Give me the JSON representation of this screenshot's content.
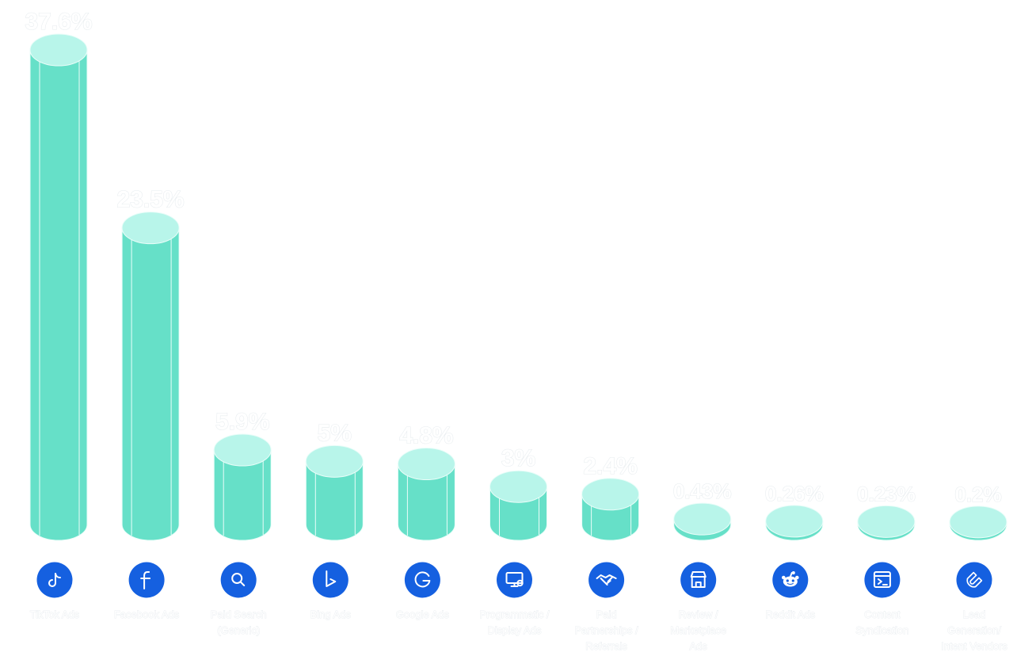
{
  "colors": {
    "bar_body": "#66e0c8",
    "bar_top": "#b8f5ea",
    "bar_edge": "#eafdf9",
    "icon_bg": "#1560e0"
  },
  "chart_data": {
    "type": "bar",
    "title": "",
    "xlabel": "",
    "ylabel": "",
    "ylim": [
      0,
      37.6
    ],
    "grid": false,
    "categories": [
      [
        "TikTok Ads"
      ],
      [
        "Facebook Ads"
      ],
      [
        "Paid Search",
        "(Generic)"
      ],
      [
        "Bing Ads"
      ],
      [
        "Google Ads"
      ],
      [
        "Programmatic /",
        "Display Ads"
      ],
      [
        "Paid",
        "Partnerships /",
        "Referrals"
      ],
      [
        "Review /",
        "Marketplace",
        "Ads"
      ],
      [
        "Reddit Ads"
      ],
      [
        "Content",
        "Syndication"
      ],
      [
        "Lead",
        "Generation/",
        "Intent Vendors"
      ]
    ],
    "values": [
      37.6,
      23.5,
      5.9,
      5,
      4.8,
      3,
      2.4,
      0.43,
      0.26,
      0.23,
      0.2
    ],
    "value_labels": [
      "37.6%",
      "23.5%",
      "5.9%",
      "5%",
      "4.8%",
      "3%",
      "2.4%",
      "0.43%",
      "0.26%",
      "0.23%",
      "0.2%"
    ],
    "icons": [
      "tiktok-icon",
      "facebook-icon",
      "search-icon",
      "bing-icon",
      "google-icon",
      "monitor-icon",
      "handshake-icon",
      "storefront-icon",
      "reddit-icon",
      "code-window-icon",
      "magnet-icon"
    ]
  }
}
